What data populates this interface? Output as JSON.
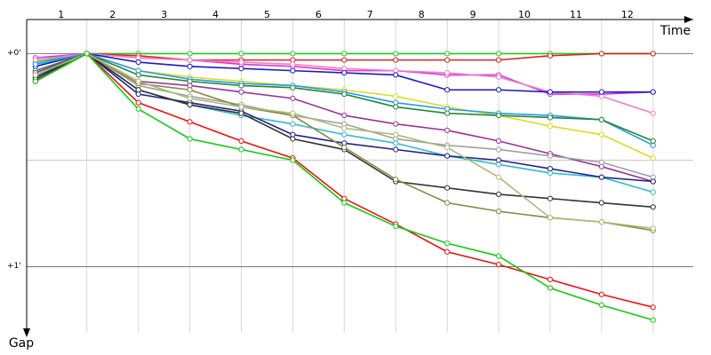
{
  "chart_data": {
    "type": "line",
    "xlabel": "Time",
    "ylabel": "Gap",
    "x": [
      0,
      1,
      2,
      3,
      4,
      5,
      6,
      7,
      8,
      9,
      10,
      11,
      12
    ],
    "xlim": [
      -0.17,
      12.78
    ],
    "xticks": [
      {
        "value": 0.5,
        "label": "1"
      },
      {
        "value": 1.5,
        "label": "2"
      },
      {
        "value": 2.5,
        "label": "3"
      },
      {
        "value": 3.5,
        "label": "4"
      },
      {
        "value": 4.5,
        "label": "5"
      },
      {
        "value": 5.5,
        "label": "6"
      },
      {
        "value": 6.5,
        "label": "7"
      },
      {
        "value": 7.5,
        "label": "8"
      },
      {
        "value": 8.5,
        "label": "9"
      },
      {
        "value": 9.5,
        "label": "10"
      },
      {
        "value": 10.5,
        "label": "11"
      },
      {
        "value": 11.5,
        "label": "12"
      }
    ],
    "xgrid": [
      1,
      2,
      3,
      4,
      5,
      6,
      7,
      8,
      9,
      10,
      11,
      12
    ],
    "ylim": [
      -0.16,
      1.31
    ],
    "yticks": [
      {
        "value": 0,
        "label": "+0'"
      },
      {
        "value": 1,
        "label": "+1'"
      }
    ],
    "ygrid": [
      0.5
    ],
    "y_inverted": true,
    "grid": true,
    "series": [
      {
        "color": "#22cc22",
        "values": [
          0.04,
          0,
          0,
          0,
          0,
          0,
          0,
          0,
          0,
          0,
          0,
          0,
          0
        ]
      },
      {
        "color": "#e02020",
        "values": [
          0.13,
          0,
          0.01,
          0.03,
          0.03,
          0.03,
          0.03,
          0.03,
          0.03,
          0.03,
          0.01,
          0,
          0
        ]
      },
      {
        "color": "#dd33dd",
        "values": [
          0.02,
          0,
          0.02,
          0.03,
          0.05,
          0.06,
          0.08,
          0.08,
          0.1,
          0.1,
          0.19,
          0.19,
          0.18
        ]
      },
      {
        "color": "#f080c0",
        "values": [
          0.03,
          0,
          0.02,
          0.03,
          0.04,
          0.05,
          0.07,
          0.08,
          0.09,
          0.11,
          0.18,
          0.2,
          0.28
        ]
      },
      {
        "color": "#1a1acc",
        "values": [
          0.06,
          0,
          0.04,
          0.06,
          0.07,
          0.08,
          0.09,
          0.1,
          0.17,
          0.17,
          0.18,
          0.18,
          0.18
        ]
      },
      {
        "color": "#dddd22",
        "values": [
          0.08,
          0,
          0.08,
          0.11,
          0.13,
          0.15,
          0.17,
          0.2,
          0.25,
          0.29,
          0.34,
          0.38,
          0.49
        ]
      },
      {
        "color": "#2299ee",
        "values": [
          0.05,
          0,
          0.08,
          0.12,
          0.14,
          0.15,
          0.18,
          0.23,
          0.26,
          0.28,
          0.29,
          0.31,
          0.43
        ]
      },
      {
        "color": "#228833",
        "values": [
          0.08,
          0,
          0.1,
          0.13,
          0.15,
          0.16,
          0.19,
          0.25,
          0.28,
          0.29,
          0.3,
          0.31,
          0.41
        ]
      },
      {
        "color": "#993399",
        "values": [
          0.09,
          0,
          0.13,
          0.15,
          0.18,
          0.21,
          0.29,
          0.33,
          0.36,
          0.41,
          0.47,
          0.53,
          0.6
        ]
      },
      {
        "color": "#a0a0a0",
        "values": [
          0.1,
          0,
          0.15,
          0.2,
          0.24,
          0.29,
          0.33,
          0.4,
          0.43,
          0.45,
          0.48,
          0.51,
          0.58
        ]
      },
      {
        "color": "#33bbcc",
        "values": [
          0.1,
          0,
          0.17,
          0.24,
          0.29,
          0.33,
          0.38,
          0.42,
          0.48,
          0.52,
          0.56,
          0.58,
          0.65
        ]
      },
      {
        "color": "#22228a",
        "values": [
          0.11,
          0,
          0.19,
          0.23,
          0.27,
          0.38,
          0.42,
          0.45,
          0.48,
          0.5,
          0.54,
          0.58,
          0.6
        ]
      },
      {
        "color": "#333333",
        "values": [
          0.12,
          0,
          0.17,
          0.24,
          0.28,
          0.4,
          0.45,
          0.6,
          0.63,
          0.66,
          0.68,
          0.7,
          0.72
        ]
      },
      {
        "color": "#888844",
        "values": [
          0.1,
          0,
          0.14,
          0.17,
          0.25,
          0.29,
          0.44,
          0.59,
          0.7,
          0.74,
          0.77,
          0.79,
          0.83
        ]
      },
      {
        "color": "#aabb77",
        "values": [
          0.1,
          0,
          0.13,
          0.21,
          0.25,
          0.28,
          0.35,
          0.38,
          0.44,
          0.58,
          0.77,
          0.79,
          0.82
        ]
      },
      {
        "color": "#ee1111",
        "values": [
          0.13,
          0,
          0.23,
          0.32,
          0.41,
          0.49,
          0.68,
          0.8,
          0.93,
          0.99,
          1.06,
          1.13,
          1.19
        ]
      },
      {
        "color": "#11cc11",
        "values": [
          0.13,
          0,
          0.26,
          0.4,
          0.45,
          0.5,
          0.7,
          0.81,
          0.89,
          0.95,
          1.1,
          1.18,
          1.25
        ]
      }
    ]
  }
}
